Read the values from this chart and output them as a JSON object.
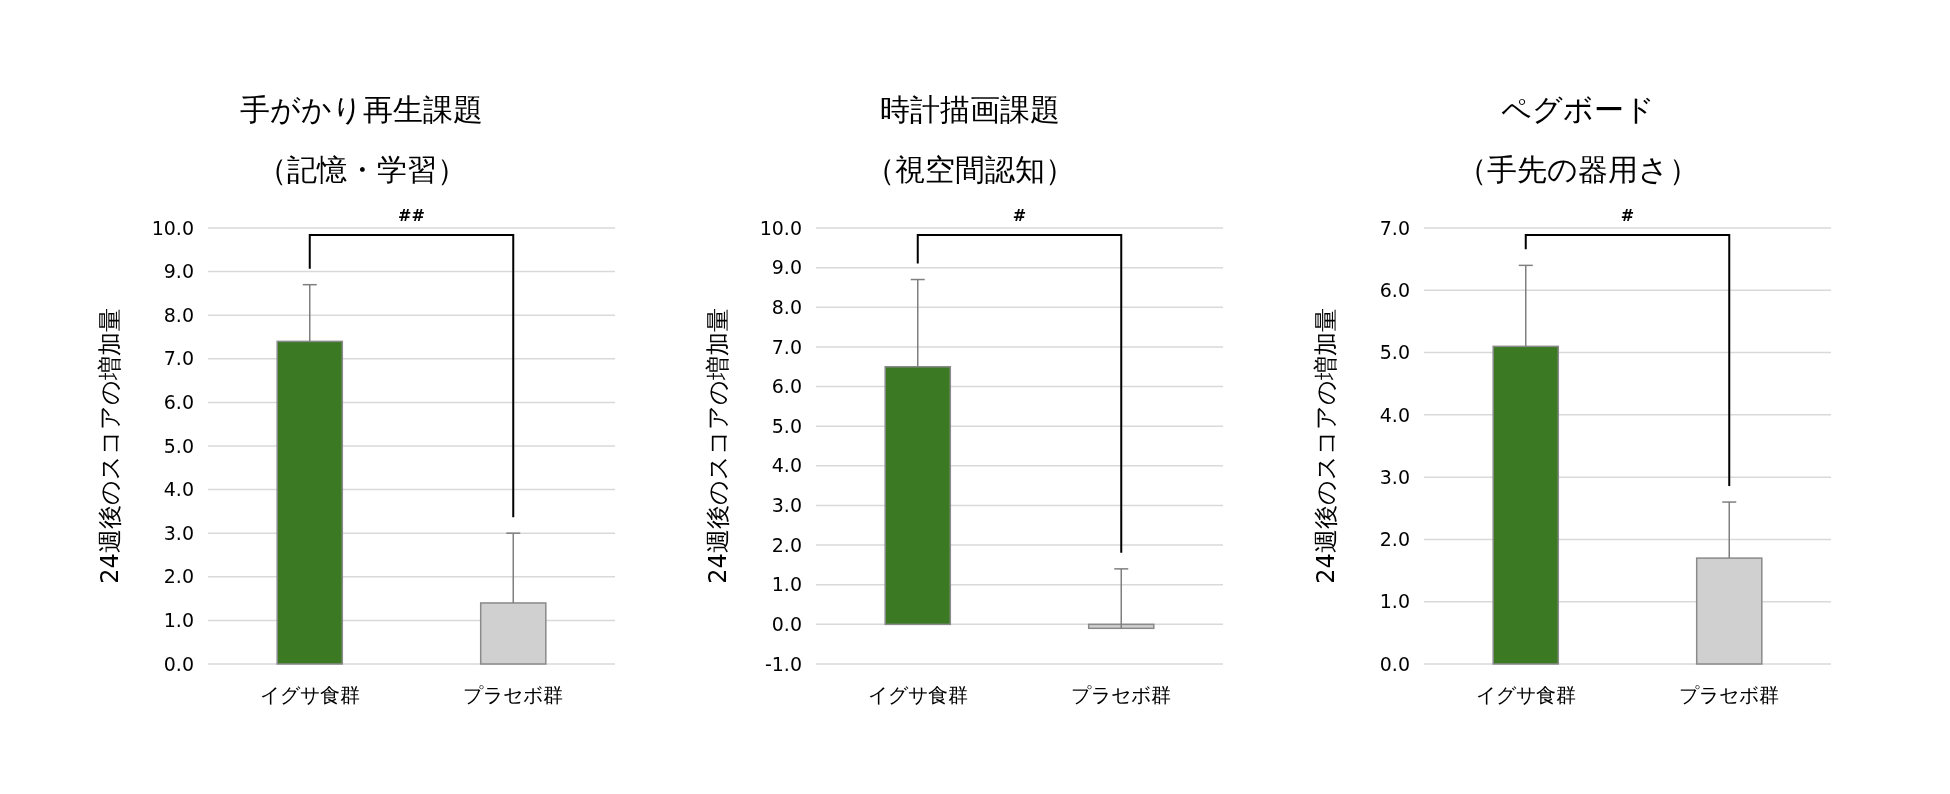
{
  "chart_data": [
    {
      "type": "bar",
      "title": "手がかり再生課題",
      "subtitle": "（記憶・学習）",
      "ylabel": "24週後のスコアの増加量",
      "categories": [
        "イグサ食群",
        "プラセボ群"
      ],
      "values": [
        7.4,
        1.4
      ],
      "colors": [
        "#3b7a23",
        "#d0d0d0"
      ],
      "errors": [
        [
          7.4,
          8.7
        ],
        [
          1.4,
          3.0
        ]
      ],
      "ylim": [
        0,
        10
      ],
      "yticks": [
        {
          "value": 0,
          "label": "0.0"
        },
        {
          "value": 1,
          "label": "1.0"
        },
        {
          "value": 2,
          "label": "2.0"
        },
        {
          "value": 3,
          "label": "3.0"
        },
        {
          "value": 4,
          "label": "4.0"
        },
        {
          "value": 5,
          "label": "5.0"
        },
        {
          "value": 6,
          "label": "6.0"
        },
        {
          "value": 7,
          "label": "7.0"
        },
        {
          "value": 8,
          "label": "8.0"
        },
        {
          "value": 9,
          "label": "9.0"
        },
        {
          "value": 10,
          "label": "10.0"
        }
      ],
      "grid": "y",
      "annotations": [
        "##"
      ]
    },
    {
      "type": "bar",
      "title": "時計描画課題",
      "subtitle": "（視空間認知）",
      "ylabel": "24週後のスコアの増加量",
      "categories": [
        "イグサ食群",
        "プラセボ群"
      ],
      "values": [
        6.5,
        -0.1
      ],
      "colors": [
        "#3b7a23",
        "#d0d0d0"
      ],
      "errors": [
        [
          6.5,
          8.7
        ],
        [
          -0.1,
          1.4
        ]
      ],
      "ylim": [
        -1,
        10
      ],
      "yticks": [
        {
          "value": -1,
          "label": "-1.0"
        },
        {
          "value": 0,
          "label": "0.0"
        },
        {
          "value": 1,
          "label": "1.0"
        },
        {
          "value": 2,
          "label": "2.0"
        },
        {
          "value": 3,
          "label": "3.0"
        },
        {
          "value": 4,
          "label": "4.0"
        },
        {
          "value": 5,
          "label": "5.0"
        },
        {
          "value": 6,
          "label": "6.0"
        },
        {
          "value": 7,
          "label": "7.0"
        },
        {
          "value": 8,
          "label": "8.0"
        },
        {
          "value": 9,
          "label": "9.0"
        },
        {
          "value": 10,
          "label": "10.0"
        }
      ],
      "grid": "y",
      "annotations": [
        "#"
      ]
    },
    {
      "type": "bar",
      "title": "ペグボード",
      "subtitle": "（手先の器用さ）",
      "ylabel": "24週後のスコアの増加量",
      "categories": [
        "イグサ食群",
        "プラセボ群"
      ],
      "values": [
        5.1,
        1.7
      ],
      "colors": [
        "#3b7a23",
        "#d0d0d0"
      ],
      "errors": [
        [
          5.1,
          6.4
        ],
        [
          1.7,
          2.6
        ]
      ],
      "ylim": [
        0,
        7
      ],
      "yticks": [
        {
          "value": 0,
          "label": "0.0"
        },
        {
          "value": 1,
          "label": "1.0"
        },
        {
          "value": 2,
          "label": "2.0"
        },
        {
          "value": 3,
          "label": "3.0"
        },
        {
          "value": 4,
          "label": "4.0"
        },
        {
          "value": 5,
          "label": "5.0"
        },
        {
          "value": 6,
          "label": "6.0"
        },
        {
          "value": 7,
          "label": "7.0"
        }
      ],
      "grid": "y",
      "annotations": [
        "#"
      ]
    }
  ]
}
